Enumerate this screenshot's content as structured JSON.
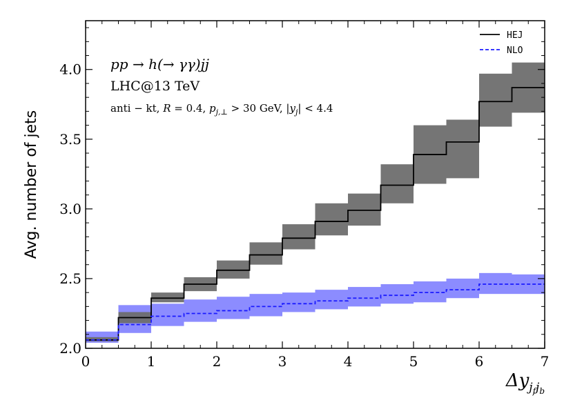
{
  "chart_data": {
    "type": "step",
    "xlabel": "Δy_{j_f j_b}",
    "xlabel_main": "Δy",
    "xlabel_sub": "j",
    "xlabel_subsub_f": "f",
    "xlabel_subsub_j": "j",
    "xlabel_subsub_b": "b",
    "ylabel": "Avg. number of jets",
    "xlim": [
      0,
      7
    ],
    "ylim": [
      2.0,
      4.35
    ],
    "xticks": [
      0,
      1,
      2,
      3,
      4,
      5,
      6,
      7
    ],
    "xtick_labels": [
      "0",
      "1",
      "2",
      "3",
      "4",
      "5",
      "6",
      "7"
    ],
    "yticks": [
      2.0,
      2.5,
      3.0,
      3.5,
      4.0
    ],
    "ytick_labels": [
      "2.0",
      "2.5",
      "3.0",
      "3.5",
      "4.0"
    ],
    "bin_edges": [
      0,
      0.5,
      1,
      1.5,
      2,
      2.5,
      3,
      3.5,
      4,
      4.5,
      5,
      5.5,
      6,
      6.5,
      7
    ],
    "series": [
      {
        "name": "HEJ",
        "color": "#000000",
        "band_color": "#6e6e6e",
        "style": "solid",
        "values": [
          2.06,
          2.22,
          2.36,
          2.46,
          2.56,
          2.67,
          2.79,
          2.91,
          2.99,
          3.17,
          3.39,
          3.48,
          3.77,
          3.87
        ],
        "lower": [
          2.05,
          2.18,
          2.33,
          2.41,
          2.5,
          2.6,
          2.71,
          2.81,
          2.88,
          3.04,
          3.18,
          3.22,
          3.59,
          3.69
        ],
        "upper": [
          2.08,
          2.26,
          2.4,
          2.51,
          2.63,
          2.76,
          2.89,
          3.04,
          3.11,
          3.32,
          3.6,
          3.64,
          3.97,
          4.05
        ]
      },
      {
        "name": "NLO",
        "color": "#1a1aff",
        "band_color": "#8080ff",
        "style": "dashed",
        "values": [
          2.06,
          2.17,
          2.23,
          2.25,
          2.27,
          2.3,
          2.32,
          2.34,
          2.36,
          2.38,
          2.4,
          2.42,
          2.46,
          2.46
        ],
        "lower": [
          2.04,
          2.11,
          2.16,
          2.19,
          2.21,
          2.23,
          2.26,
          2.28,
          2.3,
          2.32,
          2.33,
          2.36,
          2.39,
          2.39
        ],
        "upper": [
          2.12,
          2.31,
          2.32,
          2.35,
          2.37,
          2.39,
          2.4,
          2.42,
          2.44,
          2.46,
          2.48,
          2.5,
          2.54,
          2.53
        ]
      }
    ],
    "annotations": {
      "process": "pp → h(→ γγ)jj",
      "collider": "LHC@13 TeV",
      "cuts": "anti − kt, R = 0.4, p_{j,⊥} > 30 GeV, |y_j| < 4.4",
      "cuts_prefix": "anti − kt, ",
      "cuts_R": "R",
      "cuts_R_val": " = 0.4, ",
      "cuts_p": "p",
      "cuts_p_sub": "j,⊥",
      "cuts_mid": " > 30 GeV, |",
      "cuts_y": "y",
      "cuts_y_sub": "j",
      "cuts_end": "| < 4.4"
    },
    "legend": {
      "position": "top-right",
      "entries": [
        "HEJ",
        "NLO"
      ]
    },
    "grid": false
  }
}
